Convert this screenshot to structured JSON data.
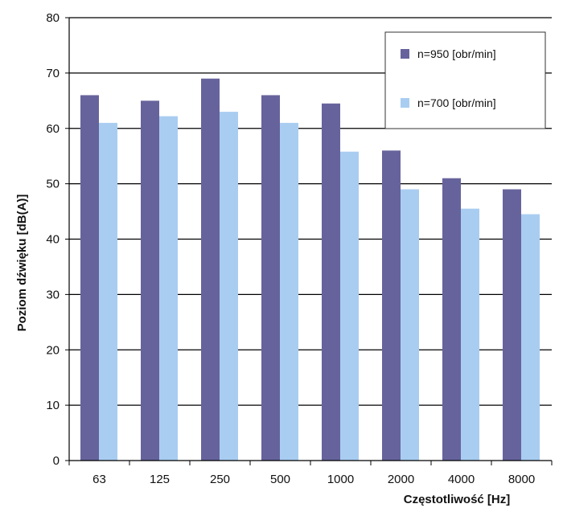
{
  "chart_data": {
    "type": "bar",
    "title": "",
    "xlabel": "Częstotliwość [Hz]",
    "ylabel": "Poziom dźwięku [dB(A)]",
    "ylim": [
      0,
      80
    ],
    "yticks": [
      0,
      10,
      20,
      30,
      40,
      50,
      60,
      70,
      80
    ],
    "grid": true,
    "legend_position": "top-right",
    "categories": [
      "63",
      "125",
      "250",
      "500",
      "1000",
      "2000",
      "4000",
      "8000"
    ],
    "series": [
      {
        "name": "n=950 [obr/min]",
        "color": "#66639c",
        "values": [
          66,
          65,
          69,
          66,
          64.5,
          56,
          51,
          49
        ]
      },
      {
        "name": "n=700 [obr/min]",
        "color": "#a9cdf1",
        "values": [
          61,
          62.2,
          63,
          61,
          55.8,
          49,
          45.5,
          44.5
        ]
      }
    ]
  }
}
